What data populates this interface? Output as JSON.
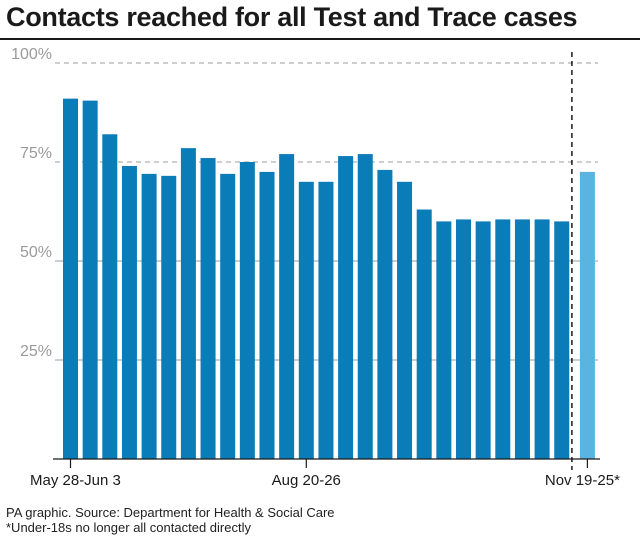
{
  "title": "Contacts reached for all Test and Trace cases",
  "footer": {
    "source": "PA graphic. Source: Department for Health & Social Care",
    "note": "*Under-18s no longer all contacted directly"
  },
  "colors": {
    "bar": "#0a7cb8",
    "bar_highlight": "#5ab4e0",
    "grid": "#b0b0b0",
    "axis": "#1a1a1a"
  },
  "chart_data": {
    "type": "bar",
    "title": "Contacts reached for all Test and Trace cases",
    "xlabel": "",
    "ylabel": "",
    "ylim": [
      0,
      100
    ],
    "yticks": [
      25,
      50,
      75,
      100
    ],
    "ytick_labels": [
      "25%",
      "50%",
      "75%",
      "100%"
    ],
    "grid": true,
    "categories": [
      "May 28-Jun 3",
      "",
      "",
      "",
      "",
      "",
      "",
      "",
      "",
      "",
      "",
      "",
      "Aug 20-26",
      "",
      "",
      "",
      "",
      "",
      "",
      "",
      "",
      "",
      "",
      "",
      "",
      "",
      "Nov 19-25*"
    ],
    "x_label_indices": [
      0,
      12,
      26
    ],
    "values": [
      91,
      90.5,
      82,
      74,
      72,
      71.5,
      78.5,
      76,
      72,
      75,
      72.5,
      77,
      70,
      70,
      76.5,
      77,
      73,
      70,
      63,
      60,
      60.5,
      60,
      60.5,
      60.5,
      60.5,
      60,
      72.5
    ],
    "highlight_index": 26,
    "divider_after_index": 25
  }
}
